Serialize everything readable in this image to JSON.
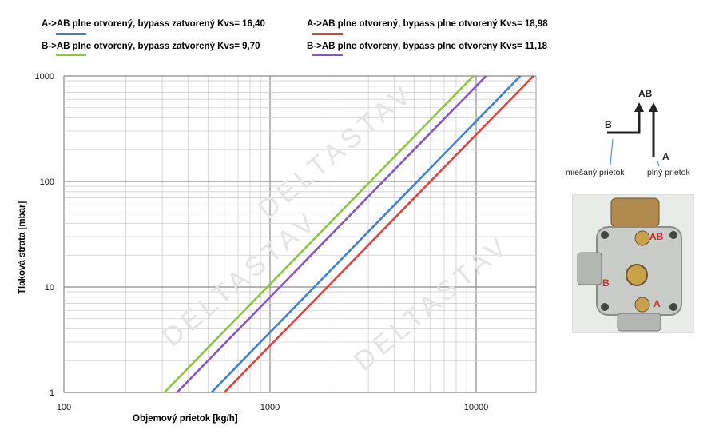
{
  "legend": {
    "items": [
      {
        "label": "A->AB plne otvorený, bypass zatvorený Kvs= 16,40",
        "color": "#3f7fd6"
      },
      {
        "label": "A->AB plne otvorený, bypass plne otvorený Kvs= 18,98",
        "color": "#e0423a"
      },
      {
        "label": "B->AB plne otvorený, bypass zatvorený Kvs= 9,70",
        "color": "#8dc63f"
      },
      {
        "label": "B->AB plne otvorený, bypass plne otvorený Kvs= 11,18",
        "color": "#8656c4"
      }
    ]
  },
  "chart_data": {
    "type": "line",
    "xlabel": "Objemový prietok [kg/h]",
    "ylabel": "Tlaková strata [mbar]",
    "x_scale": "log",
    "y_scale": "log",
    "xlim": [
      100,
      20000
    ],
    "ylim": [
      1,
      1000
    ],
    "x_ticks": [
      "100",
      "1000",
      "10000"
    ],
    "y_ticks": [
      "1",
      "10",
      "100",
      "1000"
    ],
    "grid": true,
    "legend_position": "top",
    "series": [
      {
        "name": "A->AB plne otvorený, bypass zatvorený Kvs= 16,40",
        "color": "#3f7fd6",
        "x": [
          520,
          1640,
          5190,
          16400
        ],
        "y": [
          1,
          10,
          100,
          1000
        ]
      },
      {
        "name": "A->AB plne otvorený, bypass plne otvorený Kvs= 18,98",
        "color": "#e0423a",
        "x": [
          600,
          1900,
          6000,
          18980
        ],
        "y": [
          1,
          10,
          100,
          1000
        ]
      },
      {
        "name": "B->AB plne otvorený, bypass zatvorený Kvs= 9,70",
        "color": "#8dc63f",
        "x": [
          307,
          970,
          3067,
          9700
        ],
        "y": [
          1,
          10,
          100,
          1000
        ]
      },
      {
        "name": "B->AB plne otvorený, bypass plne otvorený Kvs= 11,18",
        "color": "#8656c4",
        "x": [
          354,
          1118,
          3535,
          11180
        ],
        "y": [
          1,
          10,
          100,
          1000
        ]
      }
    ]
  },
  "diagram": {
    "port_ab": "AB",
    "port_b": "B",
    "port_a": "A",
    "mixed_flow": "miešaný prietok",
    "full_flow": "plný prietok"
  },
  "photo_labels": {
    "ab": "AB",
    "b": "B",
    "a": "A"
  },
  "watermark": "DELTASTAV"
}
